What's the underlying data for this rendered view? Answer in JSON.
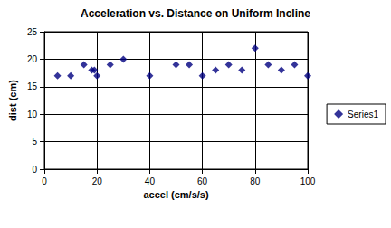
{
  "chart_data": {
    "type": "scatter",
    "title": "Acceleration vs. Distance on Uniform Incline",
    "x_label": "accel (cm/s/s)",
    "y_label": "dist (cm)",
    "series": [
      {
        "name": "Series1",
        "color": "#000080",
        "marker": "diamond",
        "x": [
          5,
          10,
          15,
          18,
          19,
          20,
          25,
          30,
          40,
          50,
          55,
          60,
          65,
          70,
          75,
          80,
          85,
          90,
          95,
          100
        ],
        "values": [
          17,
          17,
          19,
          18,
          18,
          17,
          19,
          20,
          17,
          19,
          19,
          17,
          18,
          19,
          18,
          22,
          19,
          18,
          19,
          17
        ]
      }
    ],
    "xlim": [
      0,
      100
    ],
    "xticks": [
      0,
      20,
      40,
      60,
      80,
      100
    ],
    "ylim": [
      0,
      25
    ],
    "yticks": [
      0,
      5,
      10,
      15,
      20,
      25
    ],
    "grid": true,
    "legend": "right"
  }
}
